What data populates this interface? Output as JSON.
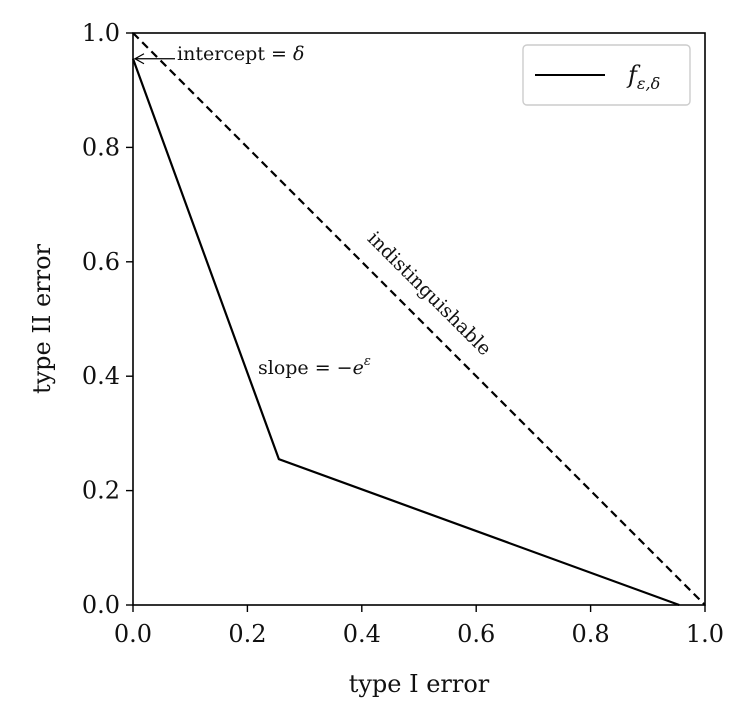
{
  "chart_data": {
    "type": "line",
    "xlabel": "type I error",
    "ylabel": "type II error",
    "xlim": [
      0,
      1
    ],
    "ylim": [
      0,
      1
    ],
    "x_ticks": [
      "0.0",
      "0.2",
      "0.4",
      "0.6",
      "0.8",
      "1.0"
    ],
    "y_ticks": [
      "0.0",
      "0.2",
      "0.4",
      "0.6",
      "0.8",
      "1.0"
    ],
    "grid": false,
    "legend_position": "top-right",
    "series": [
      {
        "name": "f",
        "name_subscript": "ε,δ",
        "style": "solid",
        "x": [
          0.0,
          0.255,
          0.955
        ],
        "y": [
          0.955,
          0.255,
          0.0
        ]
      },
      {
        "style": "dashed",
        "x": [
          0.0,
          1.0
        ],
        "y": [
          1.0,
          0.0
        ]
      }
    ],
    "annotations": {
      "intercept": {
        "text": "intercept = ",
        "symbol": "δ",
        "x": 0.0,
        "y": 0.955
      },
      "slope": {
        "text": "slope = −",
        "base": "e",
        "sup": "ε"
      },
      "diagonal": {
        "text": "indistinguishable"
      }
    }
  }
}
